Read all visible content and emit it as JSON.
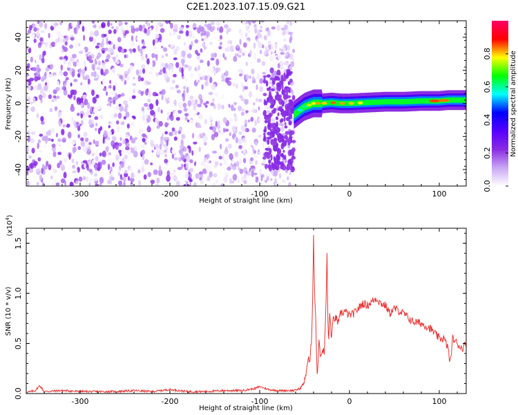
{
  "title": "C2E1.2023.107.15.09.G21",
  "chart_data": [
    {
      "type": "heatmap",
      "xlabel": "Height of straight line (km)",
      "ylabel": "Frequency (Hz)",
      "xlim": [
        -360,
        130
      ],
      "ylim": [
        -50,
        50
      ],
      "x_ticks": [
        -300,
        -200,
        -100,
        0,
        100
      ],
      "y_ticks": [
        -40,
        -20,
        0,
        20,
        40
      ],
      "colorbar": {
        "label": "Normalized spectral amplitude",
        "range": [
          0,
          1
        ],
        "ticks": [
          0.0,
          0.2,
          0.4,
          0.6,
          0.8
        ],
        "colors": [
          "#ffffff",
          "#c9a6f5",
          "#8a2be2",
          "#5500ff",
          "#0000ff",
          "#00ffff",
          "#00ff00",
          "#ffff00",
          "#ff0000",
          "#ff0066"
        ]
      },
      "noise_region": {
        "x": [
          -360,
          -62
        ],
        "y": [
          -50,
          50
        ],
        "amplitude": [
          0.0,
          0.25
        ]
      },
      "signal_trace": {
        "x": [
          -62,
          -55,
          -50,
          -45,
          -40,
          -30,
          -20,
          -10,
          0,
          20,
          40,
          60,
          80,
          100,
          110,
          120,
          130
        ],
        "frequency": [
          -7,
          -4,
          -2,
          -1,
          0,
          0,
          0.5,
          0,
          0,
          0.5,
          1,
          1,
          1.5,
          1.5,
          2,
          2,
          2
        ]
      }
    },
    {
      "type": "line",
      "xlabel": "Height of straight line (km)",
      "ylabel": "SNR (10 * v/v)",
      "y_multiplier": "(x10",
      "y_multiplier_exp": "4",
      "y_multiplier_close": ")",
      "xlim": [
        -360,
        130
      ],
      "ylim": [
        0,
        1.65
      ],
      "x_ticks": [
        -300,
        -200,
        -100,
        0,
        100
      ],
      "y_ticks": [
        0.0,
        0.5,
        1.0,
        1.5
      ],
      "series": [
        {
          "color": "#e83535",
          "x": [
            -360,
            -350,
            -345,
            -340,
            -320,
            -300,
            -280,
            -260,
            -240,
            -220,
            -200,
            -180,
            -160,
            -140,
            -120,
            -105,
            -100,
            -90,
            -80,
            -70,
            -62,
            -55,
            -50,
            -46,
            -44,
            -42,
            -41,
            -40,
            -39,
            -38,
            -37,
            -36,
            -35,
            -34,
            -32,
            -30,
            -28,
            -26,
            -25,
            -24,
            -23,
            -22,
            -20,
            -18,
            -15,
            -12,
            -10,
            -5,
            0,
            5,
            10,
            15,
            20,
            25,
            30,
            35,
            40,
            45,
            50,
            60,
            70,
            80,
            90,
            100,
            105,
            110,
            112,
            115,
            120,
            125,
            130
          ],
          "values": [
            0.01,
            0.03,
            0.08,
            0.02,
            0.03,
            0.02,
            0.02,
            0.02,
            0.03,
            0.02,
            0.04,
            0.02,
            0.02,
            0.03,
            0.03,
            0.05,
            0.07,
            0.04,
            0.03,
            0.03,
            0.03,
            0.05,
            0.12,
            0.35,
            0.3,
            0.6,
            1.0,
            1.6,
            1.05,
            0.85,
            0.5,
            0.2,
            0.3,
            0.55,
            0.35,
            0.45,
            0.4,
            0.95,
            1.38,
            0.7,
            0.55,
            0.8,
            0.55,
            0.75,
            0.75,
            0.7,
            0.8,
            0.82,
            0.78,
            0.8,
            0.85,
            0.9,
            0.88,
            0.92,
            0.95,
            0.9,
            0.88,
            0.8,
            0.85,
            0.8,
            0.72,
            0.7,
            0.65,
            0.55,
            0.55,
            0.45,
            0.3,
            0.55,
            0.5,
            0.45,
            0.5
          ]
        }
      ]
    }
  ]
}
